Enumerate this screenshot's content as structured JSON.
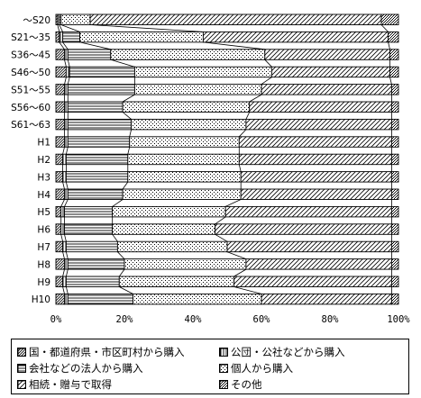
{
  "chart_data": {
    "type": "bar",
    "orientation": "horizontal",
    "stacked": "percent",
    "title": "",
    "xlabel": "",
    "ylabel": "",
    "xlim": [
      0,
      100
    ],
    "x_ticks": [
      "0%",
      "20%",
      "40%",
      "60%",
      "80%",
      "100%"
    ],
    "grid": false,
    "legend_position": "bottom",
    "categories": [
      "～S20",
      "S21～35",
      "S36～45",
      "S46～50",
      "S51～55",
      "S56～60",
      "S61～63",
      "H1",
      "H2",
      "H3",
      "H4",
      "H5",
      "H6",
      "H7",
      "H8",
      "H9",
      "H10"
    ],
    "series": [
      {
        "name": "国・都道府県・市区町村から購入",
        "pattern": "diag-fine",
        "values": [
          0.5,
          1.0,
          2.5,
          3.0,
          2.5,
          2.5,
          2.5,
          2.5,
          2.0,
          2.0,
          2.5,
          1.5,
          1.5,
          2.0,
          2.5,
          2.0,
          2.5
        ]
      },
      {
        "name": "公団・公社などから購入",
        "pattern": "vertical",
        "values": [
          0.5,
          1.0,
          1.0,
          1.0,
          1.0,
          1.0,
          1.0,
          1.0,
          1.0,
          1.0,
          1.0,
          1.0,
          1.0,
          1.0,
          1.0,
          1.0,
          1.0
        ]
      },
      {
        "name": "会社などの法人から購入",
        "pattern": "horizontal",
        "values": [
          0.5,
          5.0,
          12.5,
          19.0,
          19.5,
          16.0,
          18.5,
          18.0,
          18.0,
          18.0,
          16.0,
          14.0,
          14.0,
          15.0,
          16.5,
          15.5,
          19.0
        ]
      },
      {
        "name": "個人から購入",
        "pattern": "dots",
        "values": [
          8.5,
          36.0,
          45.0,
          40.0,
          37.0,
          37.0,
          33.5,
          32.0,
          32.5,
          33.0,
          34.5,
          33.0,
          30.0,
          32.0,
          35.5,
          33.5,
          37.5
        ]
      },
      {
        "name": "相続・贈与で取得",
        "pattern": "diag-wide",
        "values": [
          85.0,
          54.0,
          36.5,
          34.5,
          38.0,
          41.5,
          42.5,
          44.5,
          44.5,
          44.0,
          44.0,
          48.5,
          51.5,
          48.0,
          42.5,
          46.0,
          38.0
        ]
      },
      {
        "name": "その他",
        "pattern": "cross-dots",
        "values": [
          5.0,
          3.0,
          2.5,
          2.5,
          2.0,
          2.0,
          2.0,
          2.0,
          2.0,
          2.0,
          2.0,
          2.0,
          2.0,
          2.0,
          2.0,
          2.0,
          2.0
        ]
      }
    ]
  }
}
